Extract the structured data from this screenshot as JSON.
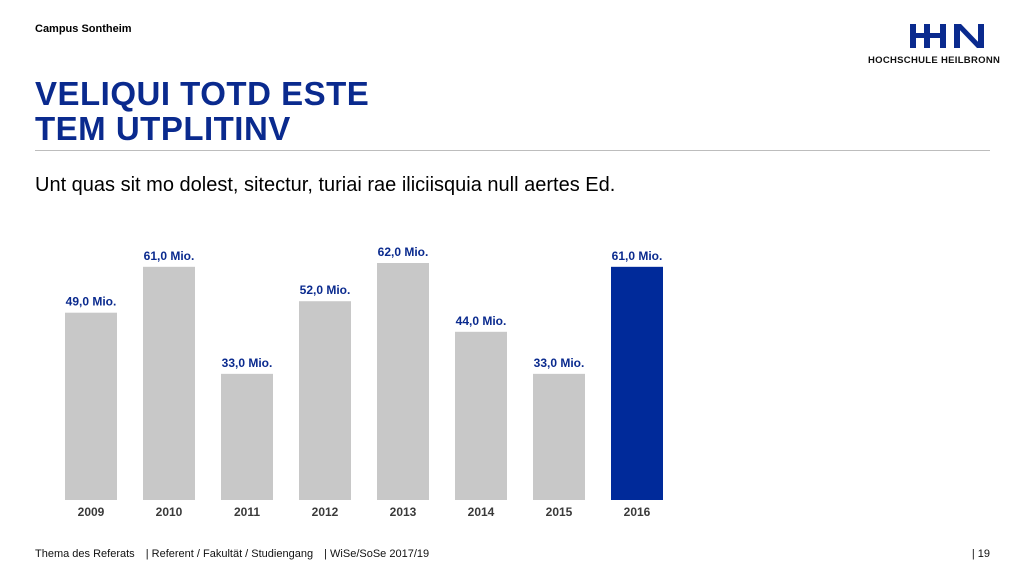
{
  "header": {
    "campus": "Campus Sontheim",
    "logo_text": "HOCHSCHULE HEILBRONN",
    "title_line1": "VELIQUI TOTD ESTE",
    "title_line2": "TEM UTPLITINV",
    "subtitle": "Unt quas sit mo dolest, sitectur, turiai rae iliciisquia null aertes Ed."
  },
  "colors": {
    "title": "#0a2a8e",
    "bar_default": "#c8c8c8",
    "bar_highlight": "#002a9a",
    "label": "#0a2a8e"
  },
  "chart_data": {
    "type": "bar",
    "categories": [
      "2009",
      "2010",
      "2011",
      "2012",
      "2013",
      "2014",
      "2015",
      "2016"
    ],
    "values": [
      49,
      61,
      33,
      52,
      62,
      44,
      33,
      61
    ],
    "data_labels": [
      "49,0 Mio.",
      "61,0 Mio.",
      "33,0 Mio.",
      "52,0 Mio.",
      "62,0 Mio.",
      "44,0 Mio.",
      "33,0 Mio.",
      "61,0 Mio."
    ],
    "highlight_index": 7,
    "title": "",
    "xlabel": "",
    "ylabel": "",
    "ylim": [
      0,
      62
    ],
    "grid": false,
    "legend": "none"
  },
  "footer": {
    "topic": "Thema des Referats",
    "presenter": "| Referent / Fakultät / Studiengang",
    "semester": "| WiSe/SoSe 2017/19",
    "page": "|  19"
  }
}
